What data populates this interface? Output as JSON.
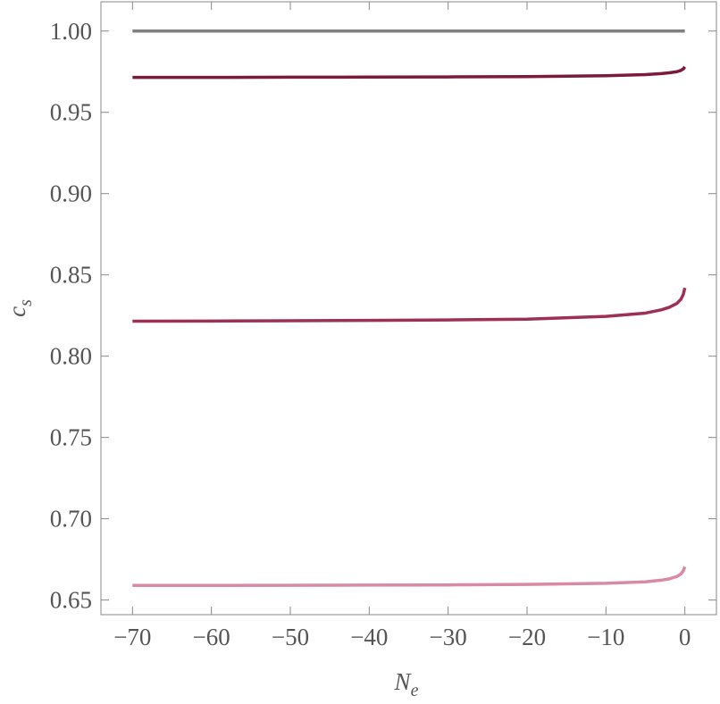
{
  "chart_data": {
    "type": "line",
    "xlabel": {
      "text": "N",
      "sub": "e"
    },
    "ylabel": {
      "text": "c",
      "sub": "s"
    },
    "x": [
      -70,
      -60,
      -50,
      -40,
      -30,
      -20,
      -10,
      -5,
      -3,
      -2,
      -1,
      -0.5,
      -0.2,
      0
    ],
    "series": [
      {
        "color": "#808080",
        "values": [
          1.0,
          1.0,
          1.0,
          1.0,
          1.0,
          1.0,
          1.0,
          1.0,
          1.0,
          1.0,
          1.0,
          1.0,
          1.0,
          1.0
        ]
      },
      {
        "color": "#7a1b3a",
        "values": [
          0.9715,
          0.9715,
          0.9716,
          0.9717,
          0.9718,
          0.972,
          0.9725,
          0.9732,
          0.9738,
          0.9743,
          0.975,
          0.9758,
          0.9767,
          0.978
        ]
      },
      {
        "color": "#9e2f55",
        "values": [
          0.8215,
          0.8216,
          0.8218,
          0.822,
          0.8223,
          0.8228,
          0.8245,
          0.8265,
          0.8285,
          0.83,
          0.8325,
          0.835,
          0.838,
          0.842
        ]
      },
      {
        "color": "#d98aa3",
        "values": [
          0.659,
          0.659,
          0.6591,
          0.6592,
          0.6593,
          0.6596,
          0.6603,
          0.6612,
          0.6622,
          0.663,
          0.6645,
          0.666,
          0.668,
          0.6705
        ]
      }
    ],
    "xlim": [
      -74,
      4
    ],
    "ylim": [
      0.641,
      1.018
    ],
    "xticks": [
      {
        "value": -70,
        "label": "−70"
      },
      {
        "value": -60,
        "label": "−60"
      },
      {
        "value": -50,
        "label": "−50"
      },
      {
        "value": -40,
        "label": "−40"
      },
      {
        "value": -30,
        "label": "−30"
      },
      {
        "value": -20,
        "label": "−20"
      },
      {
        "value": -10,
        "label": "−10"
      },
      0
    ],
    "yticks": [
      {
        "value": 0.65,
        "label": "0.65"
      },
      {
        "value": 0.7,
        "label": "0.70"
      },
      {
        "value": 0.75,
        "label": "0.75"
      },
      {
        "value": 0.8,
        "label": "0.80"
      },
      {
        "value": 0.85,
        "label": "0.85"
      },
      {
        "value": 0.9,
        "label": "0.90"
      },
      {
        "value": 0.95,
        "label": "0.95"
      },
      {
        "value": 1.0,
        "label": "1.00"
      }
    ]
  }
}
